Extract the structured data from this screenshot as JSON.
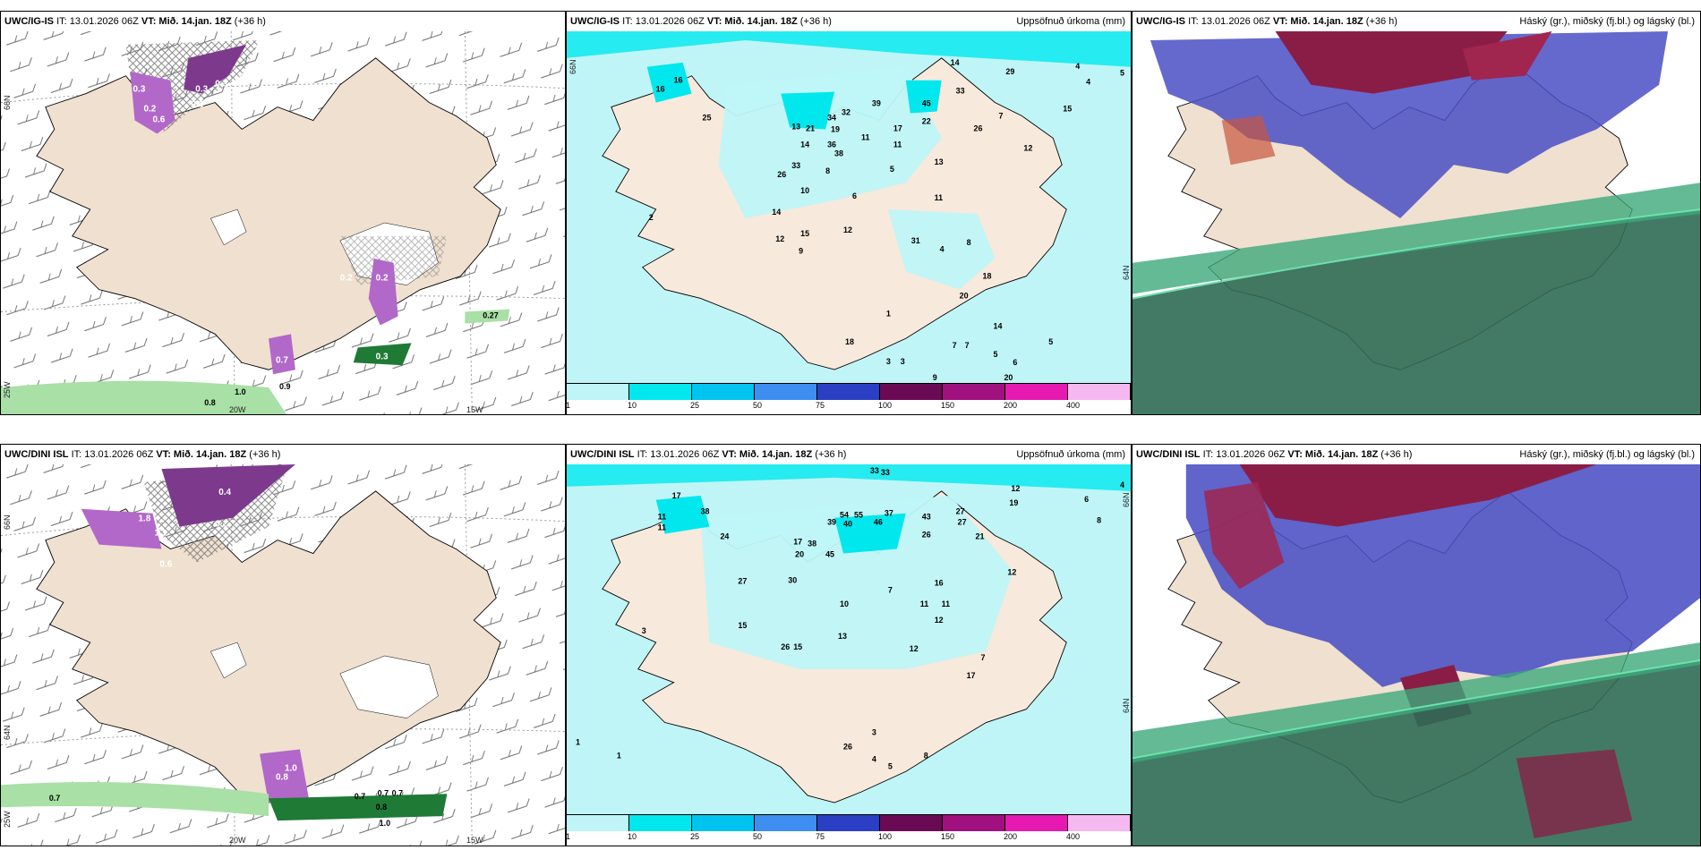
{
  "panels": {
    "p1": {
      "model": "UWC/IG-IS",
      "it": "IT: 13.01.2026 06Z",
      "vt": "VT: Mið. 14.jan. 18Z",
      "lead": "(+36 h)",
      "rtitle": ""
    },
    "p2": {
      "model": "UWC/IG-IS",
      "it": "IT: 13.01.2026 06Z",
      "vt": "VT: Mið. 14.jan. 18Z",
      "lead": "(+36 h)",
      "rtitle": "Uppsöfnuð úrkoma (mm)"
    },
    "p3": {
      "model": "UWC/IG-IS",
      "it": "IT: 13.01.2026 06Z",
      "vt": "VT: Mið. 14.jan. 18Z",
      "lead": "(+36 h)",
      "rtitle": "Háský (gr.), miðský (fj.bl.) og lágský (bl.)"
    },
    "p4": {
      "model": "UWC/DINI ISL",
      "it": "IT: 13.01.2026 06Z",
      "vt": "VT: Mið. 14.jan. 18Z",
      "lead": "(+36 h)",
      "rtitle": ""
    },
    "p5": {
      "model": "UWC/DINI ISL",
      "it": "IT: 13.01.2026 06Z",
      "vt": "VT: Mið. 14.jan. 18Z",
      "lead": "(+36 h)",
      "rtitle": "Uppsöfnuð úrkoma (mm)"
    },
    "p6": {
      "model": "UWC/DINI ISL",
      "it": "IT: 13.01.2026 06Z",
      "vt": "VT: Mið. 14.jan. 18Z",
      "lead": "(+36 h)",
      "rtitle": "Háský (gr.), miðský (fj.bl.) og lágský (bl.)"
    }
  },
  "axis": {
    "lat66": "66N",
    "lat64": "64N",
    "lon25": "25W",
    "lon20": "20W",
    "lon15": "15W"
  },
  "legend": {
    "ticks": [
      "1",
      "10",
      "25",
      "50",
      "75",
      "100",
      "150",
      "200",
      "400"
    ],
    "colors": [
      "#bff5f7",
      "#00e8ee",
      "#00c4f0",
      "#3d8ef0",
      "#2b3fc4",
      "#6a0a55",
      "#a0107e",
      "#e61ab0",
      "#f6b8f0"
    ]
  },
  "p1_labels": [
    "0.3",
    "0.3",
    "0.2",
    "0.3",
    "0.2",
    "0.6",
    "0.2",
    "0.7",
    "0.3",
    "0.8",
    "1.0",
    "0.9",
    "0.27",
    "0.2"
  ],
  "p4_labels": [
    "0.4",
    "1.8",
    "1.1",
    "0.2",
    "0.6",
    "0.7",
    "0.7",
    "0.7",
    "0.7",
    "0.8",
    "1.0",
    "0.8",
    "1.0"
  ],
  "p2_nums": [
    "14",
    "33",
    "29",
    "4",
    "4",
    "5",
    "16",
    "16",
    "25",
    "15",
    "45",
    "32",
    "34",
    "39",
    "17",
    "22",
    "26",
    "7",
    "12",
    "13",
    "21",
    "19",
    "11",
    "11",
    "14",
    "36",
    "38",
    "33",
    "26",
    "10",
    "5",
    "8",
    "6",
    "13",
    "11",
    "12",
    "31",
    "12",
    "15",
    "9",
    "14",
    "4",
    "8",
    "20",
    "18",
    "14",
    "7",
    "7",
    "5",
    "6",
    "5",
    "20",
    "9",
    "2",
    "3",
    "3",
    "1",
    "18"
  ],
  "p5_nums": [
    "33",
    "33",
    "12",
    "19",
    "6",
    "4",
    "8",
    "17",
    "38",
    "24",
    "11",
    "11",
    "43",
    "54",
    "55",
    "37",
    "27",
    "27",
    "21",
    "40",
    "39",
    "46",
    "26",
    "17",
    "38",
    "20",
    "30",
    "27",
    "45",
    "15",
    "11",
    "12",
    "16",
    "10",
    "7",
    "11",
    "13",
    "12",
    "12",
    "15",
    "26",
    "26",
    "17",
    "7",
    "8",
    "3",
    "1",
    "1",
    "3",
    "5",
    "4"
  ]
}
